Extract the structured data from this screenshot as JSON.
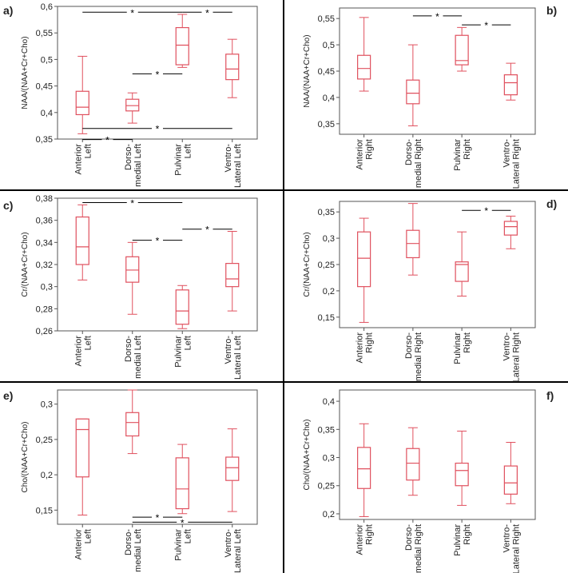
{
  "colors": {
    "box": "#e0505e",
    "axis": "#555555",
    "text": "#222222",
    "divider": "#000000",
    "sig": "#000000"
  },
  "chart_data": [
    {
      "panel_label": "a)",
      "type": "box",
      "ylabel": "NAA/(NAA+Cr+Cho)",
      "ylim": [
        0.35,
        0.6
      ],
      "yticks": [
        0.35,
        0.4,
        0.45,
        0.5,
        0.55,
        0.6
      ],
      "ytick_labels": [
        "0,35",
        "0,4",
        "0,45",
        "0,5",
        "0,55",
        "0,6"
      ],
      "categories": [
        [
          "Anterior",
          "Left"
        ],
        [
          "Dorso-",
          "medial Left"
        ],
        [
          "Pulvinar",
          "Left"
        ],
        [
          "Ventro-",
          "Lateral Left"
        ]
      ],
      "boxes": [
        {
          "whisker_low": 0.36,
          "q1": 0.396,
          "median": 0.41,
          "q3": 0.44,
          "whisker_high": 0.506
        },
        {
          "whisker_low": 0.38,
          "q1": 0.403,
          "median": 0.413,
          "q3": 0.425,
          "whisker_high": 0.437
        },
        {
          "whisker_low": 0.485,
          "q1": 0.49,
          "median": 0.527,
          "q3": 0.56,
          "whisker_high": 0.585
        },
        {
          "whisker_low": 0.428,
          "q1": 0.462,
          "median": 0.482,
          "q3": 0.51,
          "whisker_high": 0.538
        }
      ],
      "significance": [
        {
          "from": 0,
          "to": 2,
          "y": 0.589,
          "label": "*"
        },
        {
          "from": 2,
          "to": 3,
          "y": 0.589,
          "label": "*"
        },
        {
          "from": 1,
          "to": 2,
          "y": 0.473,
          "label": "*"
        },
        {
          "from": 0,
          "to": 3,
          "y": 0.37,
          "label": "*"
        },
        {
          "from": 0,
          "to": 1,
          "y": 0.349,
          "label": "*"
        }
      ]
    },
    {
      "panel_label": "b)",
      "type": "box",
      "ylabel": "NAA/(NAA+Cr+Cho)",
      "ylim": [
        0.33,
        0.57
      ],
      "yticks": [
        0.35,
        0.4,
        0.45,
        0.5,
        0.55
      ],
      "ytick_labels": [
        "0,35",
        "0,4",
        "0,45",
        "0,5",
        "0,55"
      ],
      "categories": [
        [
          "Anterior",
          "Right"
        ],
        [
          "Dorso-",
          "medial Right"
        ],
        [
          "Pulvinar",
          "Right"
        ],
        [
          "Ventro-",
          "Lateral Right"
        ]
      ],
      "boxes": [
        {
          "whisker_low": 0.412,
          "q1": 0.435,
          "median": 0.455,
          "q3": 0.48,
          "whisker_high": 0.552
        },
        {
          "whisker_low": 0.346,
          "q1": 0.388,
          "median": 0.408,
          "q3": 0.433,
          "whisker_high": 0.5
        },
        {
          "whisker_low": 0.45,
          "q1": 0.462,
          "median": 0.47,
          "q3": 0.518,
          "whisker_high": 0.533
        },
        {
          "whisker_low": 0.395,
          "q1": 0.405,
          "median": 0.428,
          "q3": 0.443,
          "whisker_high": 0.465
        }
      ],
      "significance": [
        {
          "from": 1,
          "to": 2,
          "y": 0.555,
          "label": "*"
        },
        {
          "from": 2,
          "to": 3,
          "y": 0.538,
          "label": "*"
        }
      ]
    },
    {
      "panel_label": "c)",
      "type": "box",
      "ylabel": "Cr/(NAA+Cr+Cho)",
      "ylim": [
        0.26,
        0.38
      ],
      "yticks": [
        0.26,
        0.28,
        0.3,
        0.32,
        0.34,
        0.36,
        0.38
      ],
      "ytick_labels": [
        "0,26",
        "0,28",
        "0,3",
        "0,32",
        "0,34",
        "0,36",
        "0,38"
      ],
      "categories": [
        [
          "Anterior",
          "Left"
        ],
        [
          "Dorso-",
          "medial Left"
        ],
        [
          "Pulvinar",
          "Left"
        ],
        [
          "Ventro-",
          "Lateral Left"
        ]
      ],
      "boxes": [
        {
          "whisker_low": 0.306,
          "q1": 0.32,
          "median": 0.336,
          "q3": 0.363,
          "whisker_high": 0.374
        },
        {
          "whisker_low": 0.275,
          "q1": 0.304,
          "median": 0.315,
          "q3": 0.327,
          "whisker_high": 0.34
        },
        {
          "whisker_low": 0.262,
          "q1": 0.266,
          "median": 0.278,
          "q3": 0.297,
          "whisker_high": 0.301
        },
        {
          "whisker_low": 0.278,
          "q1": 0.3,
          "median": 0.307,
          "q3": 0.321,
          "whisker_high": 0.35
        }
      ],
      "significance": [
        {
          "from": 0,
          "to": 2,
          "y": 0.376,
          "label": "*"
        },
        {
          "from": 1,
          "to": 2,
          "y": 0.342,
          "label": "*"
        },
        {
          "from": 2,
          "to": 3,
          "y": 0.352,
          "label": "*"
        }
      ]
    },
    {
      "panel_label": "d)",
      "type": "box",
      "ylabel": "Cr/(NAA+Cr+Cho)",
      "ylim": [
        0.13,
        0.37
      ],
      "yticks": [
        0.15,
        0.2,
        0.25,
        0.3,
        0.35
      ],
      "ytick_labels": [
        "0,15",
        "0,2",
        "0,25",
        "0,3",
        "0,35"
      ],
      "categories": [
        [
          "Anterior",
          "Right"
        ],
        [
          "Dorso-",
          "medial Right"
        ],
        [
          "Pulvinar",
          "Right"
        ],
        [
          "Ventro-",
          "Lateral Right"
        ]
      ],
      "boxes": [
        {
          "whisker_low": 0.14,
          "q1": 0.208,
          "median": 0.262,
          "q3": 0.312,
          "whisker_high": 0.338
        },
        {
          "whisker_low": 0.23,
          "q1": 0.263,
          "median": 0.29,
          "q3": 0.315,
          "whisker_high": 0.366
        },
        {
          "whisker_low": 0.19,
          "q1": 0.218,
          "median": 0.25,
          "q3": 0.255,
          "whisker_high": 0.312
        },
        {
          "whisker_low": 0.28,
          "q1": 0.306,
          "median": 0.322,
          "q3": 0.332,
          "whisker_high": 0.342
        }
      ],
      "significance": [
        {
          "from": 2,
          "to": 3,
          "y": 0.353,
          "label": "*"
        }
      ]
    },
    {
      "panel_label": "e)",
      "type": "box",
      "ylabel": "Cho/(NAA+Cr+Cho)",
      "ylim": [
        0.13,
        0.32
      ],
      "yticks": [
        0.15,
        0.2,
        0.25,
        0.3
      ],
      "ytick_labels": [
        "0,15",
        "0,2",
        "0,25",
        "0,3"
      ],
      "categories": [
        [
          "Anterior",
          "Left"
        ],
        [
          "Dorso-",
          "medial Left"
        ],
        [
          "Pulvinar",
          "Left"
        ],
        [
          "Ventro-",
          "Lateral Left"
        ]
      ],
      "boxes": [
        {
          "whisker_low": 0.143,
          "q1": 0.197,
          "median": 0.264,
          "q3": 0.279,
          "whisker_high": 0.279
        },
        {
          "whisker_low": 0.23,
          "q1": 0.255,
          "median": 0.274,
          "q3": 0.288,
          "whisker_high": 0.32
        },
        {
          "whisker_low": 0.145,
          "q1": 0.152,
          "median": 0.18,
          "q3": 0.224,
          "whisker_high": 0.243
        },
        {
          "whisker_low": 0.148,
          "q1": 0.192,
          "median": 0.21,
          "q3": 0.225,
          "whisker_high": 0.265
        }
      ],
      "significance": [
        {
          "from": 1,
          "to": 2,
          "y": 0.14,
          "label": "*"
        },
        {
          "from": 1,
          "to": 3,
          "y": 0.133,
          "label": "*"
        }
      ]
    },
    {
      "panel_label": "f)",
      "type": "box",
      "ylabel": "Cho/(NAA+Cr+Cho)",
      "ylim": [
        0.19,
        0.42
      ],
      "yticks": [
        0.2,
        0.25,
        0.3,
        0.35,
        0.4
      ],
      "ytick_labels": [
        "0,2",
        "0,25",
        "0,3",
        "0,35",
        "0,4"
      ],
      "categories": [
        [
          "Anterior",
          "Right"
        ],
        [
          "Dorso-",
          "medial Right"
        ],
        [
          "Pulvinar",
          "Right"
        ],
        [
          "Ventro-",
          "Lateral Right"
        ]
      ],
      "boxes": [
        {
          "whisker_low": 0.195,
          "q1": 0.245,
          "median": 0.28,
          "q3": 0.318,
          "whisker_high": 0.36
        },
        {
          "whisker_low": 0.233,
          "q1": 0.26,
          "median": 0.29,
          "q3": 0.316,
          "whisker_high": 0.353
        },
        {
          "whisker_low": 0.215,
          "q1": 0.25,
          "median": 0.277,
          "q3": 0.29,
          "whisker_high": 0.347
        },
        {
          "whisker_low": 0.218,
          "q1": 0.235,
          "median": 0.255,
          "q3": 0.285,
          "whisker_high": 0.327
        }
      ],
      "significance": []
    }
  ]
}
